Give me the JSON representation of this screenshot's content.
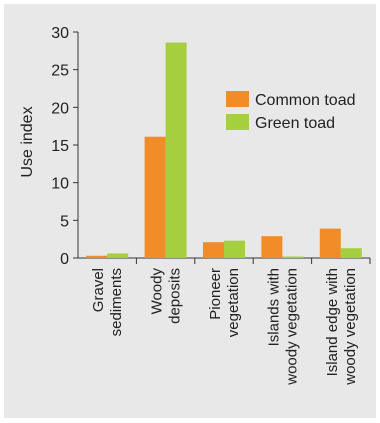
{
  "chart_data": {
    "type": "bar",
    "ylabel": "Use index",
    "ylim": [
      0,
      30
    ],
    "yticks": [
      "0",
      "5",
      "10",
      "15",
      "20",
      "25",
      "30"
    ],
    "categories": [
      [
        "Gravel",
        "sediments"
      ],
      [
        "Woody",
        "deposits"
      ],
      [
        "Pioneer",
        "vegetation"
      ],
      [
        "Islands with",
        "woody vegetation"
      ],
      [
        "Island edge with",
        "woody vegetation"
      ]
    ],
    "series": [
      {
        "name": "Common toad",
        "color": "#f28c28",
        "values": [
          0.3,
          16.1,
          2.1,
          2.9,
          3.9
        ]
      },
      {
        "name": "Green toad",
        "color": "#a6cf3f",
        "values": [
          0.6,
          28.6,
          2.3,
          0.2,
          1.3
        ]
      }
    ],
    "legend_position": "top-right"
  }
}
